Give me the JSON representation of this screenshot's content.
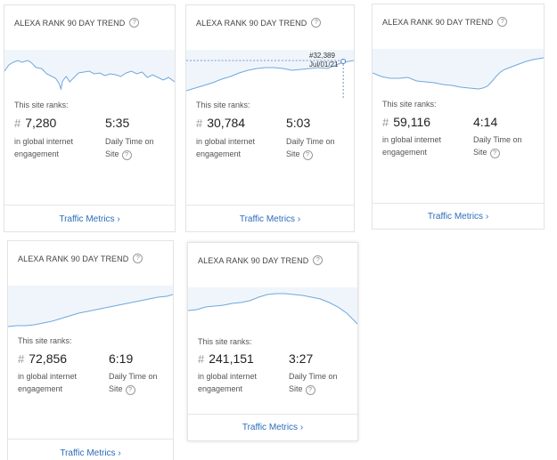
{
  "colors": {
    "line": "#6fa8dc",
    "link": "#2a6ebb",
    "panel": "#f0f5fc"
  },
  "icons": {
    "help": "question-circle-icon"
  },
  "cards": [
    {
      "title": "ALEXA RANK 90 DAY TREND",
      "ranks_label": "This site ranks:",
      "rank": "7,280",
      "rank_caption": "in global internet engagement",
      "time": "5:35",
      "time_caption": "Daily Time on Site",
      "link": "Traffic Metrics ›"
    },
    {
      "title": "ALEXA RANK 90 DAY TREND",
      "ranks_label": "This site ranks:",
      "rank": "30,784",
      "rank_caption": "in global internet engagement",
      "time": "5:03",
      "time_caption": "Daily Time on Site",
      "link": "Traffic Metrics ›",
      "tooltip": {
        "value": "#32,389",
        "date": "Jul/01/21"
      }
    },
    {
      "title": "ALEXA RANK 90 DAY TREND",
      "ranks_label": "This site ranks:",
      "rank": "59,116",
      "rank_caption": "in global internet engagement",
      "time": "4:14",
      "time_caption": "Daily Time on Site",
      "link": "Traffic Metrics ›"
    },
    {
      "title": "ALEXA RANK 90 DAY TREND",
      "ranks_label": "This site ranks:",
      "rank": "72,856",
      "rank_caption": "in global internet engagement",
      "time": "6:19",
      "time_caption": "Daily Time on Site",
      "link": "Traffic Metrics ›"
    },
    {
      "title": "ALEXA RANK 90 DAY TREND",
      "ranks_label": "This site ranks:",
      "rank": "241,151",
      "rank_caption": "in global internet engagement",
      "time": "3:27",
      "time_caption": "Daily Time on Site",
      "link": "Traffic Metrics ›"
    }
  ]
}
